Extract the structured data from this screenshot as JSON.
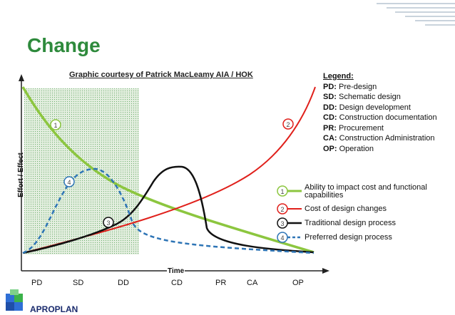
{
  "title": "Change",
  "credit": "Graphic courtesy of Patrick MacLeamy AIA / HOK",
  "axes": {
    "x_label": "Time",
    "y_label": "Effort / Effect"
  },
  "phases": [
    "PD",
    "SD",
    "DD",
    "CD",
    "PR",
    "CA",
    "OP"
  ],
  "legend": {
    "heading": "Legend:",
    "items": [
      {
        "code": "PD:",
        "text": "Pre-design"
      },
      {
        "code": "SD:",
        "text": "Schematic design"
      },
      {
        "code": "DD:",
        "text": "Design development"
      },
      {
        "code": "CD:",
        "text": "Construction documentation"
      },
      {
        "code": "PR:",
        "text": "Procurement"
      },
      {
        "code": "CA:",
        "text": "Construction Administration"
      },
      {
        "code": "OP:",
        "text": "Operation"
      }
    ]
  },
  "curves": [
    {
      "num": "1",
      "label": "Ability to impact cost and functional capabilities",
      "color": "#8cc63f",
      "style": "solid"
    },
    {
      "num": "2",
      "label": "Cost of design changes",
      "color": "#e0201b",
      "style": "solid"
    },
    {
      "num": "3",
      "label": "Traditional design process",
      "color": "#111111",
      "style": "solid"
    },
    {
      "num": "4",
      "label": "Preferred design process",
      "color": "#2e75b6",
      "style": "dashed"
    }
  ],
  "logo": {
    "name": "APROPLAN"
  }
}
